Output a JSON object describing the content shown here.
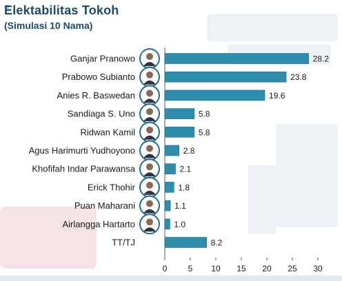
{
  "title": "Elektabilitas Tokoh",
  "subtitle": "(Simulasi 10 Nama)",
  "colors": {
    "bar": "#2e8cad",
    "bar_stroke": "#1f6d8a",
    "title": "#1b4a6b",
    "label": "#1a1a1a",
    "axis": "#555555",
    "avatar_ring": "#1f6d8a"
  },
  "chart_data": {
    "type": "bar",
    "orientation": "horizontal",
    "title": "Elektabilitas Tokoh",
    "subtitle": "(Simulasi 10 Nama)",
    "xlabel": "",
    "ylabel": "",
    "xlim": [
      0,
      30
    ],
    "xticks": [
      "0",
      "5",
      "10",
      "15",
      "20",
      "25",
      "30"
    ],
    "grid": false,
    "categories": [
      "Ganjar Pranowo",
      "Prabowo Subianto",
      "Anies R. Baswedan",
      "Sandiaga S. Uno",
      "Ridwan Kamil",
      "Agus Harimurti Yudhoyono",
      "Khofifah Indar Parawansa",
      "Erick Thohir",
      "Puan Maharani",
      "Airlangga Hartarto",
      "TT/TJ"
    ],
    "values": [
      28.2,
      23.8,
      19.6,
      5.8,
      5.8,
      2.8,
      2.1,
      1.8,
      1.1,
      1.0,
      8.2
    ],
    "value_labels": [
      "28.2",
      "23.8",
      "19.6",
      "5.8",
      "5.8",
      "2.8",
      "2.1",
      "1.8",
      "1.1",
      "1.0",
      "8.2"
    ],
    "has_avatar": [
      true,
      true,
      true,
      true,
      true,
      true,
      true,
      true,
      true,
      true,
      false
    ],
    "avatar_icons": [
      "person-photo-icon",
      "person-photo-icon",
      "person-photo-icon",
      "person-photo-icon",
      "person-photo-icon",
      "person-photo-icon",
      "person-photo-icon",
      "person-photo-icon",
      "person-photo-icon",
      "person-photo-icon",
      ""
    ]
  }
}
